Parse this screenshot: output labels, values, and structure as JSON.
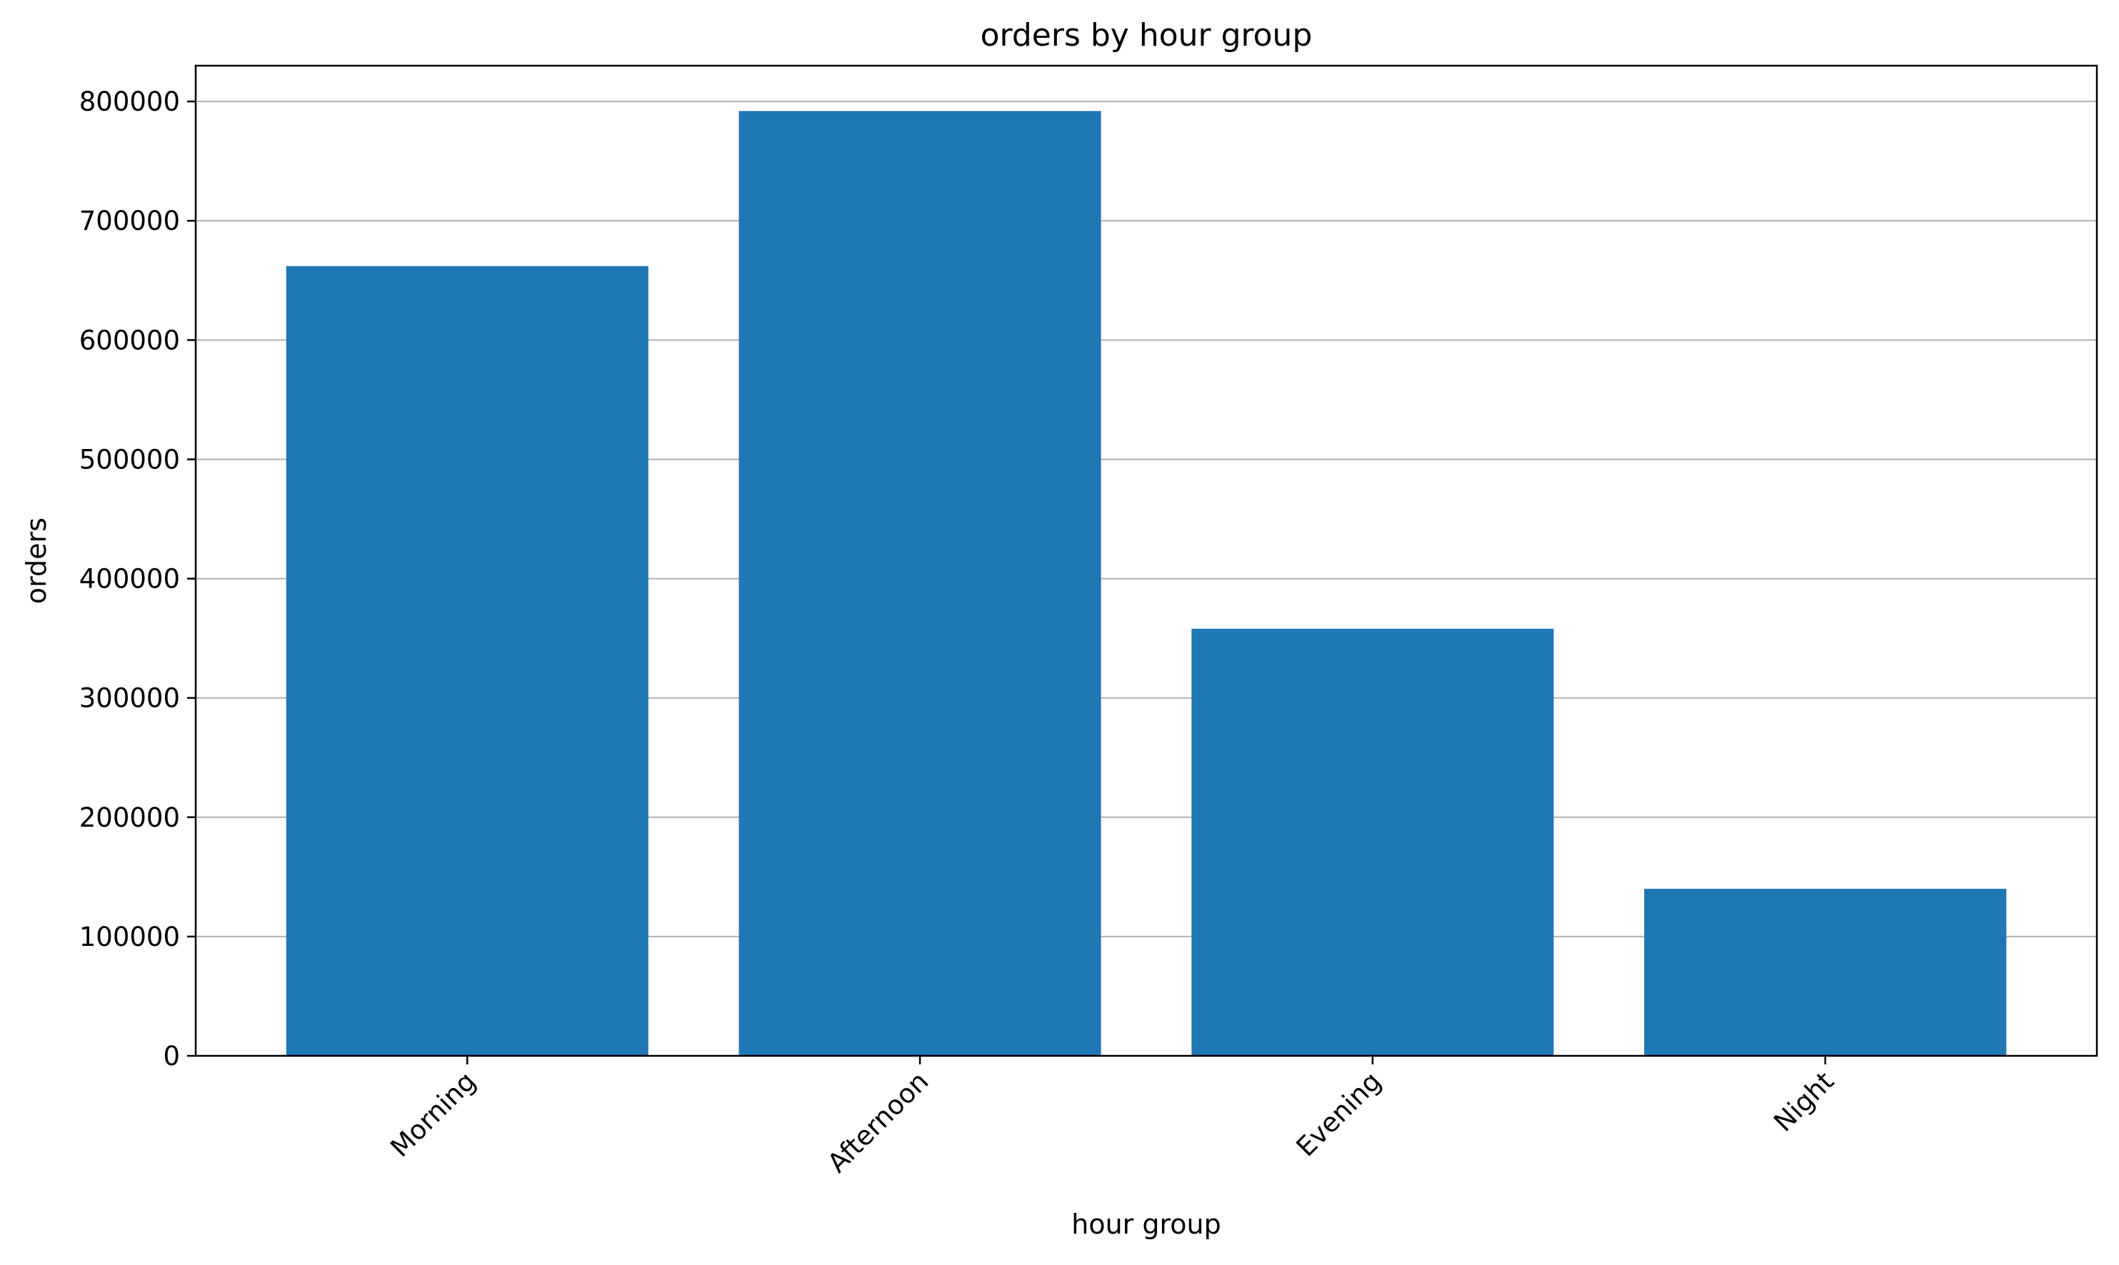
{
  "chart_data": {
    "type": "bar",
    "title": "orders by hour group",
    "xlabel": "hour group",
    "ylabel": "orders",
    "categories": [
      "Morning",
      "Afternoon",
      "Evening",
      "Night"
    ],
    "values": [
      662000,
      792000,
      358000,
      140000
    ],
    "ylim": [
      0,
      830000
    ],
    "yticks": [
      0,
      100000,
      200000,
      300000,
      400000,
      500000,
      600000,
      700000,
      800000
    ],
    "ytick_labels": [
      "0",
      "100000",
      "200000",
      "300000",
      "400000",
      "500000",
      "600000",
      "700000",
      "800000"
    ],
    "grid": "y-axis horizontal lines",
    "legend": "none",
    "xtick_rotation_deg": 45,
    "colors": {
      "bar": "#1f77b4",
      "grid": "#b0b0b0",
      "axis": "#000000"
    }
  }
}
